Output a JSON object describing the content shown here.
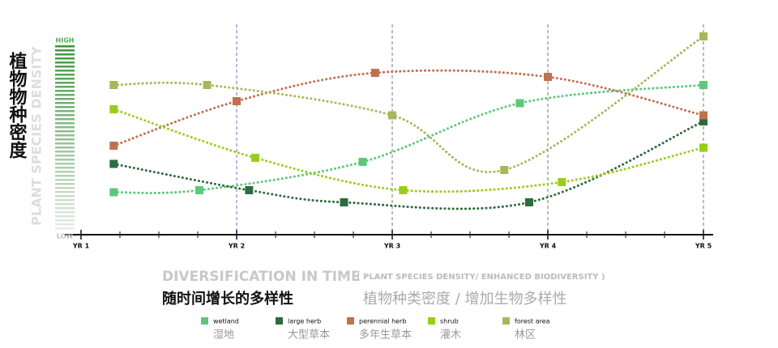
{
  "chart_data": {
    "type": "line",
    "title": "植物物种密度",
    "ylabel": "PLANT SPECIES DENSITY",
    "subtitle": "DIVERSIFICATION IN TIME",
    "subtitle_note": "( PLANT SPECIES DENSITY/ ENHANCED BIODIVERSITY )",
    "subtitle_cn": "随时间增长的多样性",
    "subtitle_note_cn": "植物种类密度 / 增加生物多样性",
    "xlim": [
      1,
      5
    ],
    "xticks": [
      {
        "value": 1,
        "label": "YR 1"
      },
      {
        "value": 2,
        "label": "YR 2"
      },
      {
        "value": 3,
        "label": "YR 3"
      },
      {
        "value": 4,
        "label": "YR 4"
      },
      {
        "value": 5,
        "label": "YR 5"
      }
    ],
    "ylim": [
      0,
      100
    ],
    "yticks": [
      {
        "value": 0,
        "label": "LOW"
      },
      {
        "value": 100,
        "label": "HIGH"
      }
    ],
    "series": [
      {
        "name": "wetland",
        "name_cn": "湿地",
        "color": "#5cc87a",
        "x": [
          1.21,
          1.76,
          2.81,
          3.82,
          5.0
        ],
        "values": [
          21,
          22,
          36,
          65,
          74
        ]
      },
      {
        "name": "large herb",
        "name_cn": "大型草本",
        "color": "#2e6b3f",
        "x": [
          1.21,
          2.08,
          2.69,
          3.88,
          5.0
        ],
        "values": [
          35,
          22,
          16,
          16,
          56
        ]
      },
      {
        "name": "perennial herb",
        "name_cn": "多年生草本",
        "color": "#c0714f",
        "x": [
          1.21,
          2.0,
          2.89,
          4.0,
          5.0
        ],
        "values": [
          44,
          66,
          80,
          78,
          59
        ]
      },
      {
        "name": "shrub",
        "name_cn": "灌木",
        "color": "#9acd1a",
        "x": [
          1.21,
          2.12,
          3.07,
          4.09,
          5.0
        ],
        "values": [
          62,
          38,
          22,
          26,
          43
        ]
      },
      {
        "name": "forest area",
        "name_cn": "林区",
        "color": "#a7b85a",
        "x": [
          1.21,
          1.81,
          3.0,
          3.72,
          5.0
        ],
        "values": [
          74,
          74,
          59,
          32,
          98
        ]
      }
    ]
  }
}
